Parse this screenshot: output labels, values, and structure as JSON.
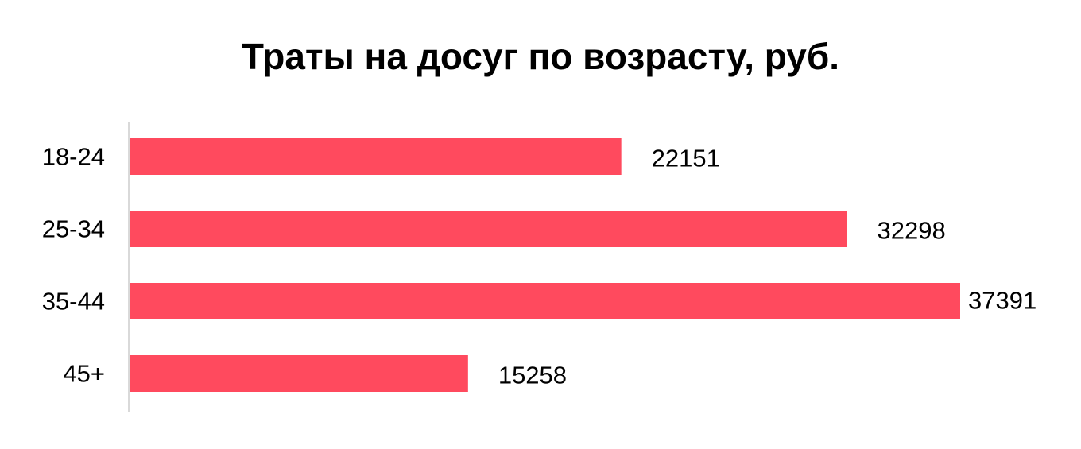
{
  "chart_data": {
    "type": "bar",
    "orientation": "horizontal",
    "title": "Траты на досуг по возрасту, руб.",
    "categories": [
      "18-24",
      "25-34",
      "35-44",
      "45+"
    ],
    "values": [
      22151,
      32298,
      37391,
      15258
    ],
    "xlim": [
      0,
      37391
    ],
    "data_labels": true,
    "grid": false,
    "legend": false
  },
  "colors": {
    "bar": "#ff4a5e",
    "axis": "#d9d9d9",
    "text": "#000000"
  }
}
